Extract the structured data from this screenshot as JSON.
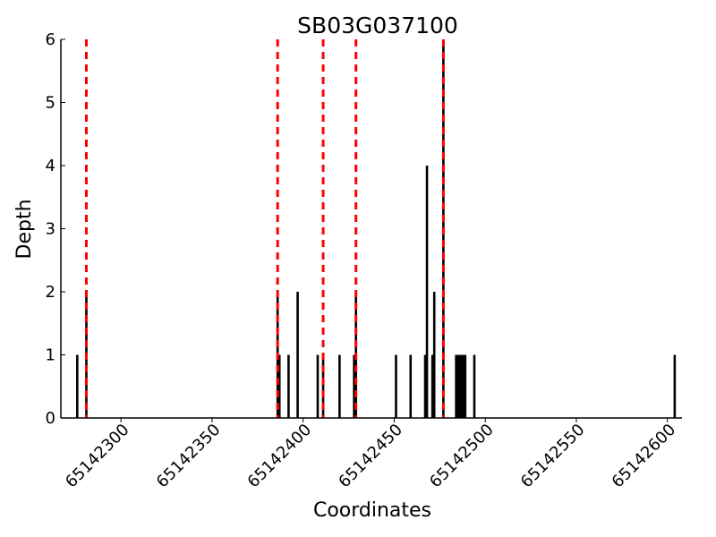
{
  "chart_data": {
    "type": "bar",
    "title": "SB03G037100",
    "xlabel": "Coordinates",
    "ylabel": "Depth",
    "xlim": [
      65142267,
      65142608
    ],
    "ylim": [
      0,
      6
    ],
    "x_ticks": [
      "65142300",
      "65142350",
      "65142400",
      "65142450",
      "65142500",
      "65142550",
      "65142600"
    ],
    "y_ticks": [
      "0",
      "1",
      "2",
      "3",
      "4",
      "5",
      "6"
    ],
    "grid": false,
    "bars": [
      {
        "x": 65142276,
        "y": 1
      },
      {
        "x": 65142281,
        "y": 2
      },
      {
        "x": 65142386,
        "y": 2
      },
      {
        "x": 65142387,
        "y": 1
      },
      {
        "x": 65142392,
        "y": 1
      },
      {
        "x": 65142397,
        "y": 2
      },
      {
        "x": 65142408,
        "y": 1
      },
      {
        "x": 65142411,
        "y": 1
      },
      {
        "x": 65142420,
        "y": 1
      },
      {
        "x": 65142428,
        "y": 1
      },
      {
        "x": 65142429,
        "y": 2
      },
      {
        "x": 65142451,
        "y": 1
      },
      {
        "x": 65142459,
        "y": 1
      },
      {
        "x": 65142467,
        "y": 1
      },
      {
        "x": 65142468,
        "y": 4
      },
      {
        "x": 65142471,
        "y": 1
      },
      {
        "x": 65142472,
        "y": 2
      },
      {
        "x": 65142477,
        "y": 6
      },
      {
        "x": 65142484,
        "y": 1
      },
      {
        "x": 65142485,
        "y": 1
      },
      {
        "x": 65142486,
        "y": 1
      },
      {
        "x": 65142487,
        "y": 1
      },
      {
        "x": 65142488,
        "y": 1
      },
      {
        "x": 65142489,
        "y": 1
      },
      {
        "x": 65142494,
        "y": 1
      },
      {
        "x": 65142604,
        "y": 1
      }
    ],
    "markers": [
      65142281,
      65142386,
      65142411,
      65142429,
      65142477
    ],
    "marker_color": "#ff0000",
    "bar_color": "#000000"
  }
}
